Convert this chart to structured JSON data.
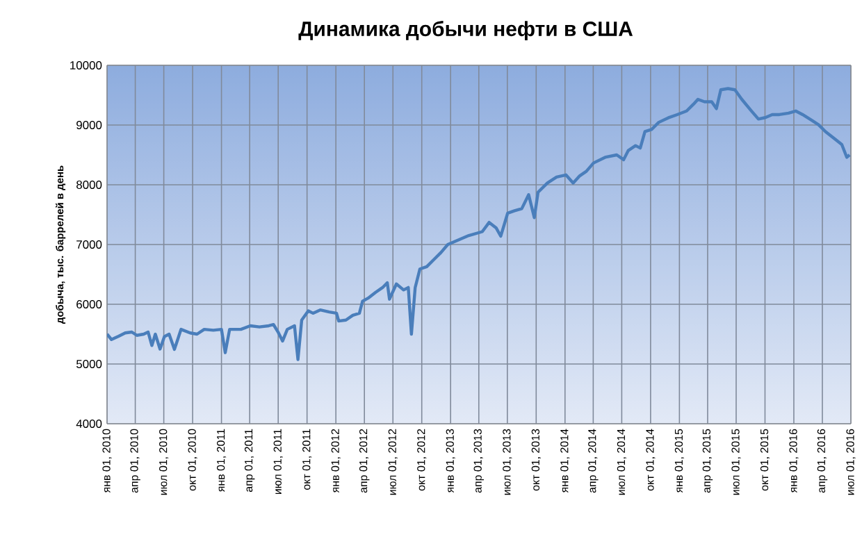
{
  "chart_data": {
    "type": "line",
    "title": "Динамика добычи нефти в США",
    "ylabel": "добыча, тыс. баррелей в день",
    "x": [
      "2010-01-01",
      "2010-01-15",
      "2010-02-07",
      "2010-02-28",
      "2010-03-21",
      "2010-04-06",
      "2010-04-28",
      "2010-05-12",
      "2010-05-24",
      "2010-06-04",
      "2010-06-19",
      "2010-07-03",
      "2010-07-18",
      "2010-08-04",
      "2010-08-25",
      "2010-09-23",
      "2010-10-15",
      "2010-11-07",
      "2010-12-06",
      "2011-01-01",
      "2011-01-13",
      "2011-01-27",
      "2011-03-04",
      "2011-04-03",
      "2011-05-02",
      "2011-06-01",
      "2011-06-16",
      "2011-06-30",
      "2011-07-15",
      "2011-07-30",
      "2011-08-22",
      "2011-09-02",
      "2011-09-14",
      "2011-10-05",
      "2011-10-20",
      "2011-11-12",
      "2011-12-11",
      "2012-01-03",
      "2012-01-10",
      "2012-02-02",
      "2012-02-24",
      "2012-03-16",
      "2012-03-26",
      "2012-04-15",
      "2012-05-07",
      "2012-05-29",
      "2012-06-13",
      "2012-06-20",
      "2012-07-12",
      "2012-08-04",
      "2012-08-19",
      "2012-08-29",
      "2012-09-10",
      "2012-09-25",
      "2012-10-17",
      "2012-11-09",
      "2012-12-01",
      "2012-12-23",
      "2013-02-28",
      "2013-04-12",
      "2013-05-04",
      "2013-05-26",
      "2013-06-10",
      "2013-07-02",
      "2013-07-24",
      "2013-08-16",
      "2013-09-07",
      "2013-09-25",
      "2013-10-07",
      "2013-11-06",
      "2013-12-05",
      "2014-01-04",
      "2014-01-27",
      "2014-02-17",
      "2014-03-10",
      "2014-04-02",
      "2014-05-09",
      "2014-06-15",
      "2014-07-07",
      "2014-07-22",
      "2014-08-14",
      "2014-08-29",
      "2014-09-13",
      "2014-10-04",
      "2014-10-27",
      "2014-11-26",
      "2014-12-25",
      "2015-01-24",
      "2015-02-15",
      "2015-03-01",
      "2015-03-22",
      "2015-04-14",
      "2015-04-29",
      "2015-05-13",
      "2015-06-05",
      "2015-06-27",
      "2015-07-19",
      "2015-08-18",
      "2015-09-10",
      "2015-10-02",
      "2015-10-24",
      "2015-11-16",
      "2015-12-15",
      "2016-01-07",
      "2016-01-29",
      "2016-02-27",
      "2016-03-20",
      "2016-04-11",
      "2016-05-10",
      "2016-06-02",
      "2016-06-18",
      "2016-06-27"
    ],
    "series": [
      {
        "color": "#4a7ebb",
        "values": [
          5500,
          5410,
          5465,
          5520,
          5535,
          5480,
          5500,
          5535,
          5310,
          5500,
          5250,
          5460,
          5500,
          5245,
          5580,
          5520,
          5500,
          5580,
          5565,
          5580,
          5190,
          5580,
          5580,
          5640,
          5620,
          5640,
          5660,
          5540,
          5385,
          5580,
          5640,
          5075,
          5735,
          5890,
          5850,
          5905,
          5870,
          5850,
          5720,
          5735,
          5815,
          5850,
          6050,
          6110,
          6200,
          6280,
          6360,
          6085,
          6340,
          6240,
          6280,
          5500,
          6280,
          6590,
          6630,
          6750,
          6865,
          7000,
          7150,
          7215,
          7370,
          7280,
          7140,
          7525,
          7565,
          7600,
          7835,
          7450,
          7875,
          8030,
          8130,
          8165,
          8030,
          8150,
          8225,
          8365,
          8460,
          8500,
          8420,
          8575,
          8655,
          8615,
          8890,
          8925,
          9045,
          9120,
          9175,
          9235,
          9350,
          9430,
          9390,
          9390,
          9275,
          9590,
          9610,
          9590,
          9430,
          9240,
          9100,
          9125,
          9175,
          9175,
          9200,
          9235,
          9175,
          9080,
          9005,
          8890,
          8770,
          8675,
          8460,
          8500
        ]
      }
    ],
    "xlim": [
      "2010-01-01",
      "2016-07-01"
    ],
    "xticks": [
      {
        "value": "2010-01-01",
        "label": "янв 01, 2010"
      },
      {
        "value": "2010-04-01",
        "label": "апр 01, 2010"
      },
      {
        "value": "2010-07-01",
        "label": "июл 01, 2010"
      },
      {
        "value": "2010-10-01",
        "label": "окт 01, 2010"
      },
      {
        "value": "2011-01-01",
        "label": "янв 01, 2011"
      },
      {
        "value": "2011-04-01",
        "label": "апр 01, 2011"
      },
      {
        "value": "2011-07-01",
        "label": "июл 01, 2011"
      },
      {
        "value": "2011-10-01",
        "label": "окт 01, 2011"
      },
      {
        "value": "2012-01-01",
        "label": "янв 01, 2012"
      },
      {
        "value": "2012-04-01",
        "label": "апр 01, 2012"
      },
      {
        "value": "2012-07-01",
        "label": "июл 01, 2012"
      },
      {
        "value": "2012-10-01",
        "label": "окт 01, 2012"
      },
      {
        "value": "2013-01-01",
        "label": "янв 01, 2013"
      },
      {
        "value": "2013-04-01",
        "label": "апр 01, 2013"
      },
      {
        "value": "2013-07-01",
        "label": "июл 01, 2013"
      },
      {
        "value": "2013-10-01",
        "label": "окт 01, 2013"
      },
      {
        "value": "2014-01-01",
        "label": "янв 01, 2014"
      },
      {
        "value": "2014-04-01",
        "label": "апр 01, 2014"
      },
      {
        "value": "2014-07-01",
        "label": "июл 01, 2014"
      },
      {
        "value": "2014-10-01",
        "label": "окт 01, 2014"
      },
      {
        "value": "2015-01-01",
        "label": "янв 01, 2015"
      },
      {
        "value": "2015-04-01",
        "label": "апр 01, 2015"
      },
      {
        "value": "2015-07-01",
        "label": "июл 01, 2015"
      },
      {
        "value": "2015-10-01",
        "label": "окт 01, 2015"
      },
      {
        "value": "2016-01-01",
        "label": "янв 01, 2016"
      },
      {
        "value": "2016-04-01",
        "label": "апр 01, 2016"
      },
      {
        "value": "2016-07-01",
        "label": "июл 01, 2016"
      }
    ],
    "ylim": [
      4000,
      10000
    ],
    "yticks": [
      4000,
      5000,
      6000,
      7000,
      8000,
      9000,
      10000
    ],
    "grid": true
  }
}
